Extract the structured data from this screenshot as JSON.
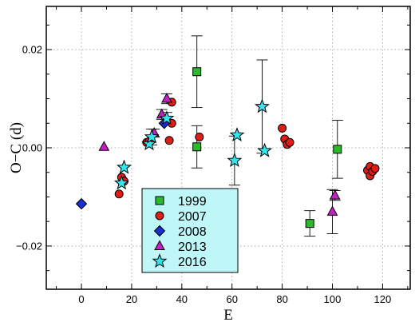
{
  "chart_data": {
    "type": "scatter",
    "xlabel": "E",
    "ylabel": "O−C (d)",
    "xlim": [
      -14,
      131
    ],
    "ylim": [
      -0.0288,
      0.0288
    ],
    "xticks": [
      0,
      20,
      40,
      60,
      80,
      100,
      120
    ],
    "xtick_labels": [
      "0",
      "20",
      "40",
      "60",
      "80",
      "100",
      "120"
    ],
    "yticks": [
      -0.02,
      0,
      0.02
    ],
    "ytick_labels": [
      "−0.02",
      "0.00",
      "0.02"
    ],
    "grid": true,
    "legend_position": "bottom-left",
    "legend_background": "#bff6f8",
    "series": [
      {
        "name": "1999",
        "marker": "square",
        "color": "#2eb82e",
        "points": [
          {
            "x": 46,
            "y": 0.0155,
            "err": 0.0073
          },
          {
            "x": 46,
            "y": 0.0002,
            "err": 0.0043
          },
          {
            "x": 91,
            "y": -0.0154,
            "err": 0.0026
          },
          {
            "x": 102,
            "y": -0.0003,
            "err": 0.0059
          }
        ]
      },
      {
        "name": "2007",
        "marker": "circle",
        "color": "#dd1e14",
        "points": [
          {
            "x": 15,
            "y": -0.0094,
            "err": 0
          },
          {
            "x": 16,
            "y": -0.006,
            "err": 0
          },
          {
            "x": 17,
            "y": -0.0068,
            "err": 0
          },
          {
            "x": 26,
            "y": 0.0011,
            "err": 0
          },
          {
            "x": 27,
            "y": 0.0013,
            "err": 0
          },
          {
            "x": 35,
            "y": 0.0015,
            "err": 0
          },
          {
            "x": 36,
            "y": 0.0093,
            "err": 0
          },
          {
            "x": 36,
            "y": 0.005,
            "err": 0
          },
          {
            "x": 47,
            "y": 0.0022,
            "err": 0
          },
          {
            "x": 80,
            "y": 0.004,
            "err": 0
          },
          {
            "x": 81,
            "y": 0.0018,
            "err": 0
          },
          {
            "x": 82,
            "y": 0.0007,
            "err": 0
          },
          {
            "x": 83,
            "y": 0.0011,
            "err": 0
          },
          {
            "x": 114,
            "y": -0.0046,
            "err": 0
          },
          {
            "x": 115,
            "y": -0.0038,
            "err": 0
          },
          {
            "x": 115,
            "y": -0.0057,
            "err": 0
          },
          {
            "x": 116,
            "y": -0.0048,
            "err": 0
          },
          {
            "x": 117,
            "y": -0.0042,
            "err": 0
          }
        ]
      },
      {
        "name": "2008",
        "marker": "diamond",
        "color": "#1a2dcf",
        "points": [
          {
            "x": 0,
            "y": -0.0114,
            "err": 0
          },
          {
            "x": 33,
            "y": 0.005,
            "err": 0
          }
        ]
      },
      {
        "name": "2013",
        "marker": "triangle",
        "color": "#c81ec8",
        "points": [
          {
            "x": 9,
            "y": 0.0002,
            "err": 0
          },
          {
            "x": 29,
            "y": 0.003,
            "err": 0.0008
          },
          {
            "x": 32,
            "y": 0.0068,
            "err": 0.001
          },
          {
            "x": 34,
            "y": 0.01,
            "err": 0.001
          },
          {
            "x": 100,
            "y": -0.013,
            "err": 0.0045
          },
          {
            "x": 101,
            "y": -0.0097,
            "err": 0.001
          }
        ]
      },
      {
        "name": "2016",
        "marker": "star",
        "color": "#33e6ee",
        "points": [
          {
            "x": 16,
            "y": -0.0072,
            "err": 0
          },
          {
            "x": 17,
            "y": -0.004,
            "err": 0
          },
          {
            "x": 27,
            "y": 0.0008,
            "err": 0
          },
          {
            "x": 28,
            "y": 0.0022,
            "err": 0.0016
          },
          {
            "x": 34,
            "y": 0.006,
            "err": 0.0012
          },
          {
            "x": 61,
            "y": -0.0026,
            "err": 0.005
          },
          {
            "x": 62,
            "y": 0.0026,
            "err": 0
          },
          {
            "x": 72,
            "y": 0.0084,
            "err": 0.0095
          },
          {
            "x": 73,
            "y": -0.0006,
            "err": 0
          }
        ]
      }
    ]
  }
}
